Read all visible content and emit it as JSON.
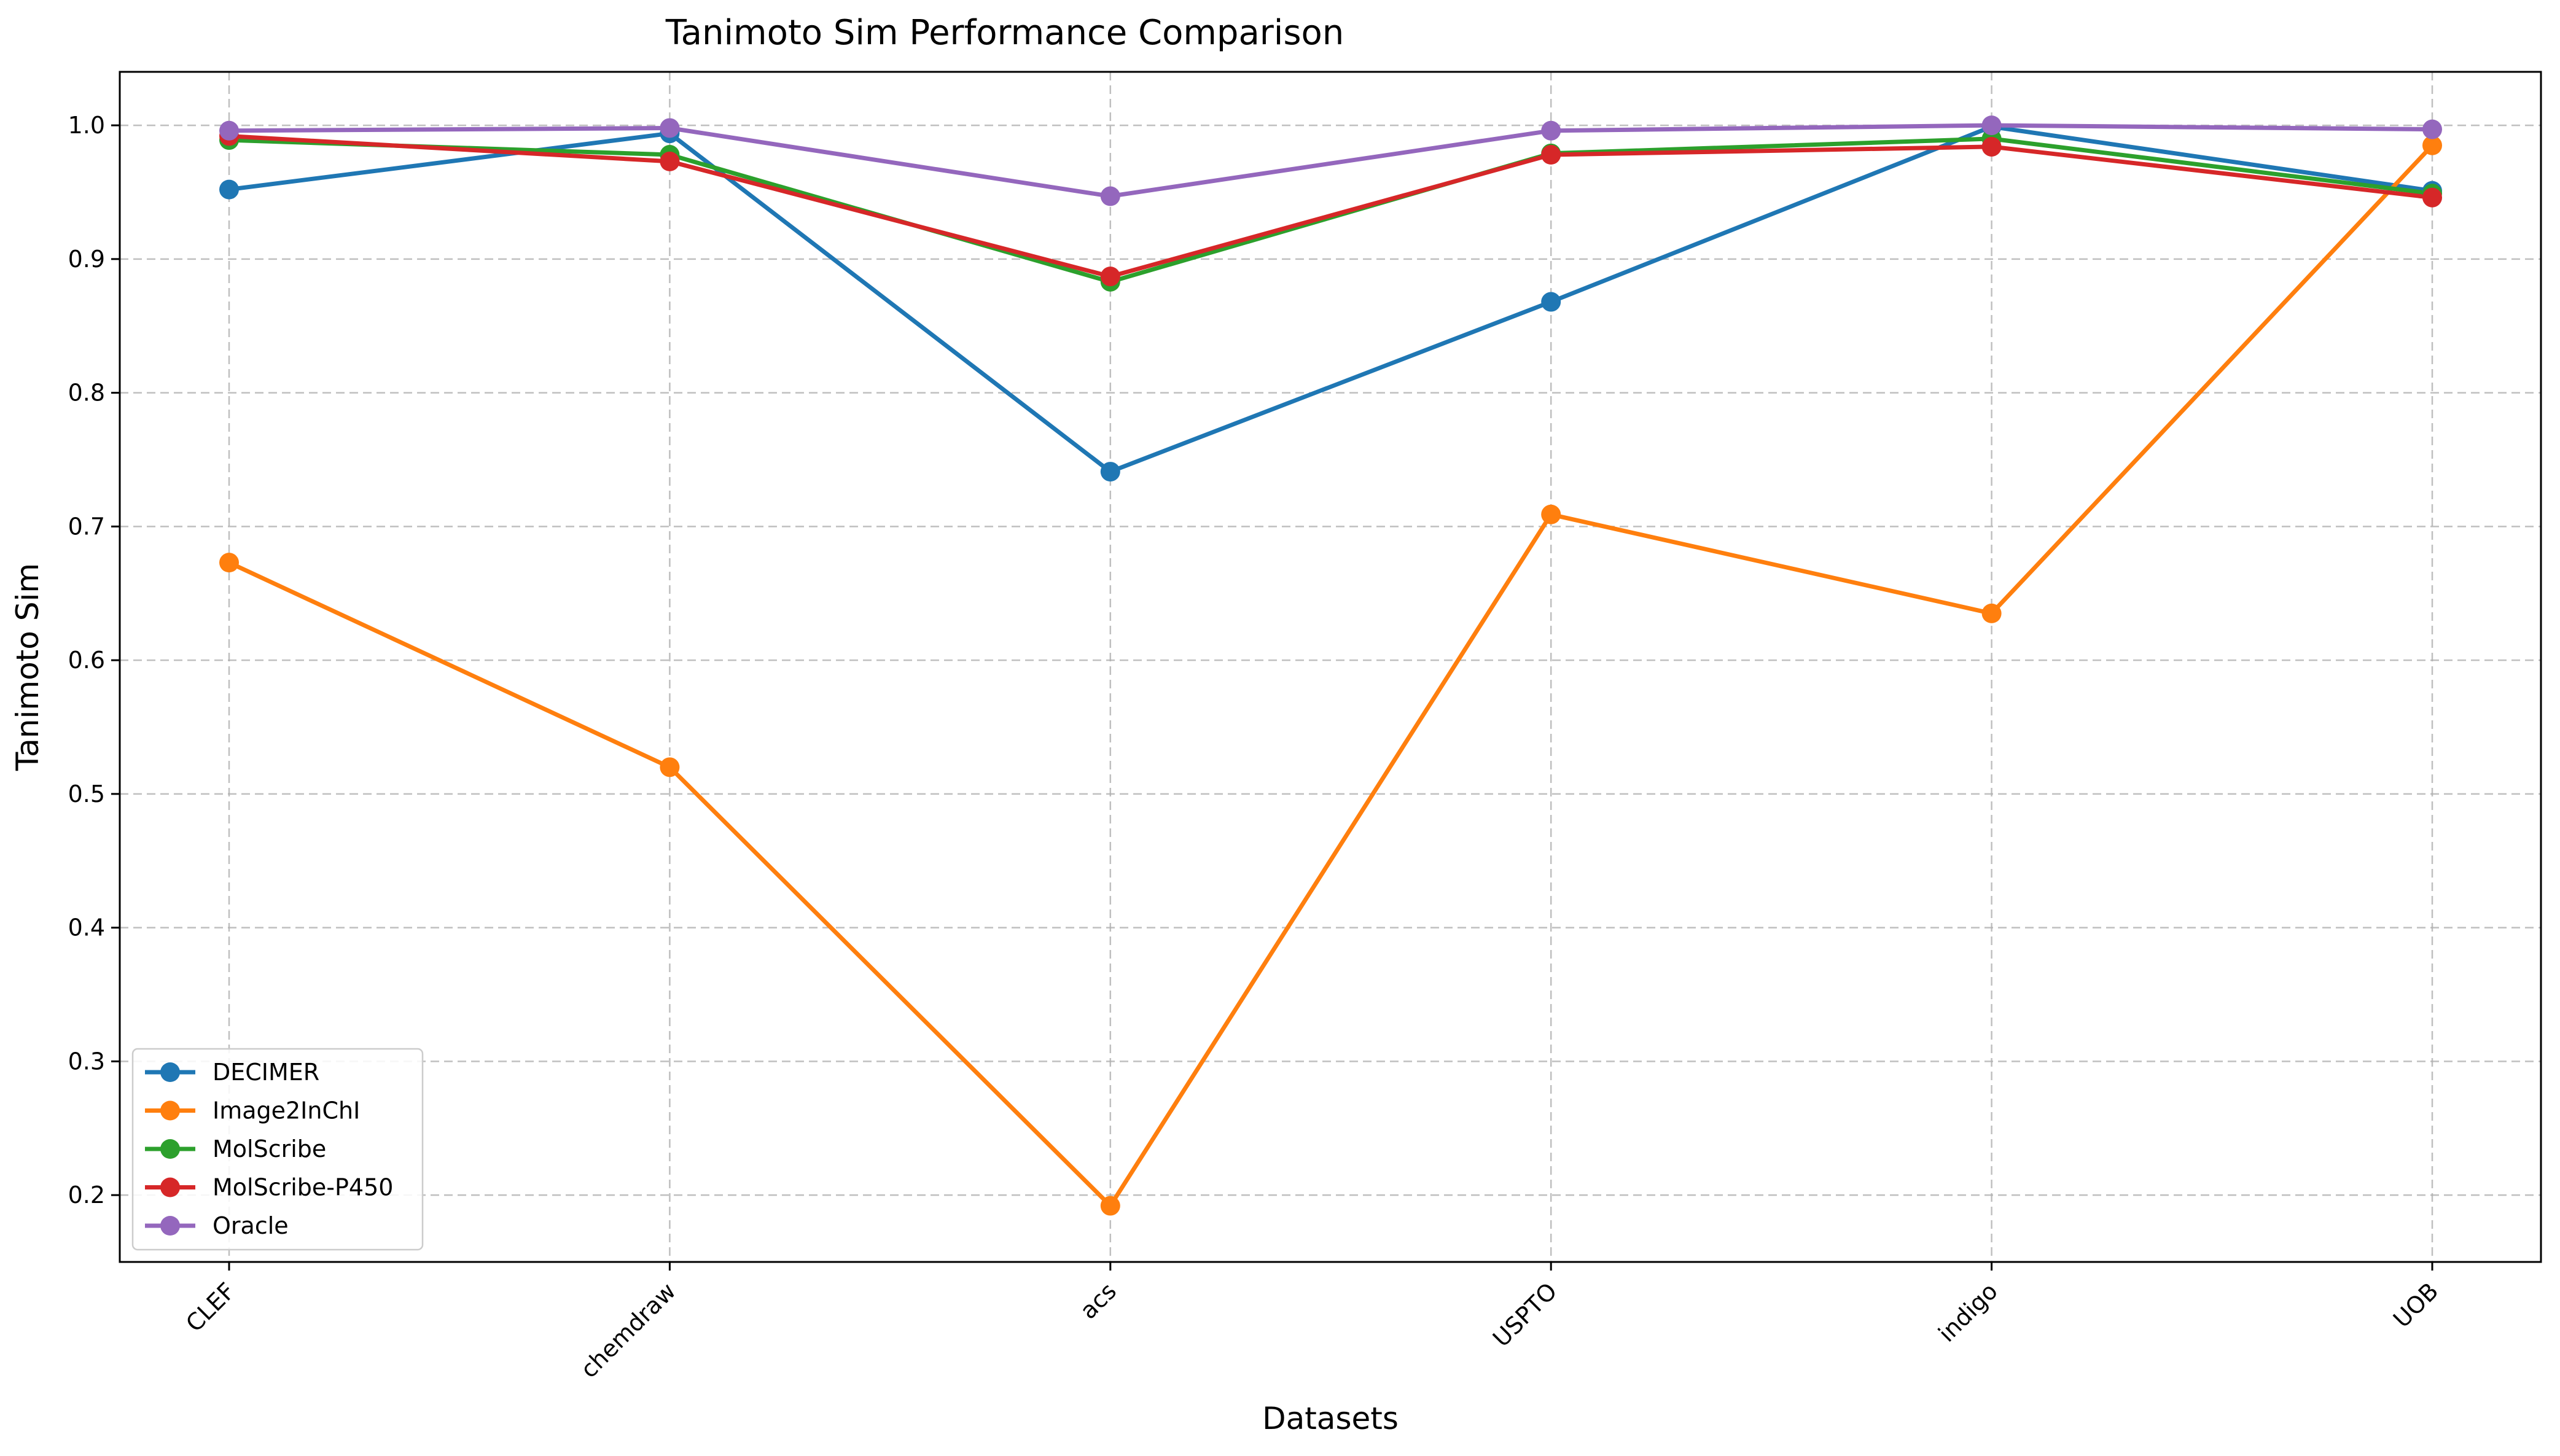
{
  "chart_data": {
    "type": "line",
    "title": "Tanimoto Sim Performance Comparison",
    "xlabel": "Datasets",
    "ylabel": "Tanimoto Sim",
    "categories": [
      "CLEF",
      "chemdraw",
      "acs",
      "USPTO",
      "indigo",
      "UOB"
    ],
    "ylim": [
      0.15,
      1.04
    ],
    "yticks": [
      "0.2",
      "0.3",
      "0.4",
      "0.5",
      "0.6",
      "0.7",
      "0.8",
      "0.9",
      "1.0"
    ],
    "grid": true,
    "legend_position": "lower-left",
    "series": [
      {
        "name": "DECIMER",
        "color": "#1f77b4",
        "values": [
          0.952,
          0.994,
          0.741,
          0.868,
          0.999,
          0.951
        ]
      },
      {
        "name": "Image2InChI",
        "color": "#ff7f0e",
        "values": [
          0.673,
          0.52,
          0.192,
          0.709,
          0.635,
          0.985
        ]
      },
      {
        "name": "MolScribe",
        "color": "#2ca02c",
        "values": [
          0.989,
          0.978,
          0.883,
          0.979,
          0.99,
          0.949
        ]
      },
      {
        "name": "MolScribe-P450",
        "color": "#d62728",
        "values": [
          0.992,
          0.973,
          0.887,
          0.978,
          0.984,
          0.946
        ]
      },
      {
        "name": "Oracle",
        "color": "#9467bd",
        "values": [
          0.996,
          0.998,
          0.947,
          0.996,
          1.0,
          0.997
        ]
      }
    ]
  }
}
